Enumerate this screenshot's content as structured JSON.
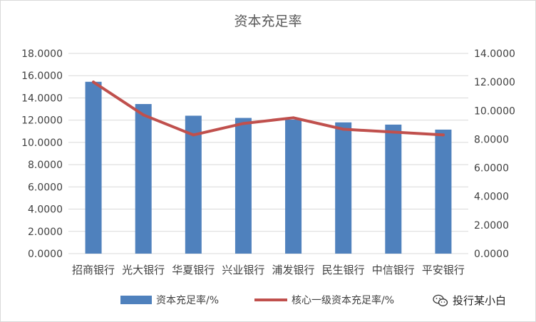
{
  "chart_data": {
    "type": "bar+line",
    "title": "资本充足率",
    "categories": [
      "招商银行",
      "光大银行",
      "华夏银行",
      "兴业银行",
      "浦发银行",
      "民生银行",
      "中信银行",
      "平安银行"
    ],
    "series": [
      {
        "name": "资本充足率/%",
        "type": "bar",
        "axis": "left",
        "color": "#4f81bd",
        "values": [
          15.45,
          13.45,
          12.4,
          12.2,
          12.05,
          11.8,
          11.6,
          11.15
        ]
      },
      {
        "name": "核心一级资本充足率/%",
        "type": "line",
        "axis": "right",
        "color": "#c0504d",
        "values": [
          12.0,
          9.7,
          8.3,
          9.1,
          9.5,
          8.7,
          8.5,
          8.3
        ]
      }
    ],
    "ylim_left": [
      0,
      18
    ],
    "ylim_right": [
      0,
      14
    ],
    "yticks_left": [
      "0.0000",
      "2.0000",
      "4.0000",
      "6.0000",
      "8.0000",
      "10.0000",
      "12.0000",
      "14.0000",
      "16.0000",
      "18.0000"
    ],
    "yticks_right": [
      "0.0000",
      "2.0000",
      "4.0000",
      "6.0000",
      "8.0000",
      "10.0000",
      "12.0000",
      "14.0000"
    ],
    "grid": true,
    "legend": "bottom"
  },
  "watermark": {
    "text": "投行某小白",
    "icon": "wechat-icon"
  }
}
